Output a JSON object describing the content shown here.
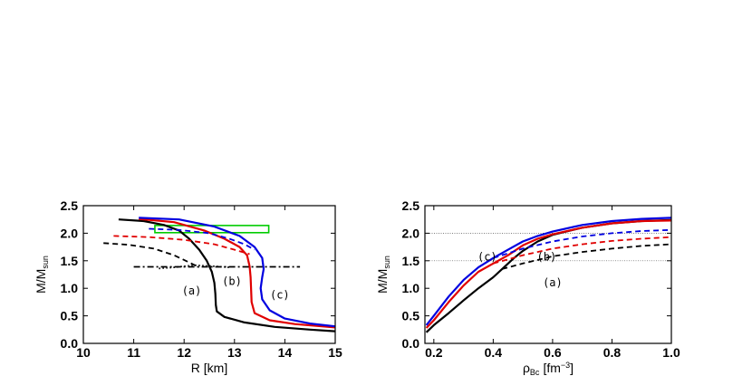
{
  "chart_data": [
    {
      "type": "line",
      "xlabel": "R [km]",
      "ylabel": "M/M",
      "ylabel_sub": "sun",
      "xlim": [
        10,
        15
      ],
      "ylim": [
        0.0,
        2.5
      ],
      "xticks": [
        10,
        11,
        12,
        13,
        14,
        15
      ],
      "yticks": [
        "0.0",
        "0.5",
        "1.0",
        "1.5",
        "2.0",
        "2.5"
      ],
      "annotations": [
        {
          "text": "(a)",
          "x": 12.15,
          "y": 0.95
        },
        {
          "text": "(b)",
          "x": 12.95,
          "y": 1.13
        },
        {
          "text": "(c)",
          "x": 13.9,
          "y": 0.88
        }
      ],
      "boxes": [
        {
          "x0": 11.42,
          "x1": 13.68,
          "y0": 2.01,
          "y1": 2.14,
          "color": "#00cc00"
        }
      ],
      "series": [
        {
          "color": "#000000",
          "style": "solid",
          "points": [
            [
              10.7,
              2.25
            ],
            [
              11.2,
              2.22
            ],
            [
              11.6,
              2.15
            ],
            [
              11.9,
              2.05
            ],
            [
              12.1,
              1.9
            ],
            [
              12.3,
              1.7
            ],
            [
              12.45,
              1.5
            ],
            [
              12.55,
              1.3
            ],
            [
              12.6,
              1.1
            ],
            [
              12.62,
              0.9
            ],
            [
              12.63,
              0.7
            ],
            [
              12.65,
              0.58
            ],
            [
              12.8,
              0.48
            ],
            [
              13.2,
              0.38
            ],
            [
              13.8,
              0.3
            ],
            [
              14.5,
              0.25
            ],
            [
              15.0,
              0.22
            ]
          ]
        },
        {
          "color": "#e00000",
          "style": "solid",
          "points": [
            [
              11.1,
              2.26
            ],
            [
              11.8,
              2.2
            ],
            [
              12.4,
              2.05
            ],
            [
              12.8,
              1.9
            ],
            [
              13.1,
              1.75
            ],
            [
              13.25,
              1.6
            ],
            [
              13.3,
              1.4
            ],
            [
              13.32,
              1.2
            ],
            [
              13.33,
              1.0
            ],
            [
              13.34,
              0.75
            ],
            [
              13.4,
              0.55
            ],
            [
              13.7,
              0.42
            ],
            [
              14.2,
              0.35
            ],
            [
              15.0,
              0.29
            ]
          ]
        },
        {
          "color": "#0000e0",
          "style": "solid",
          "points": [
            [
              11.1,
              2.28
            ],
            [
              11.9,
              2.25
            ],
            [
              12.6,
              2.12
            ],
            [
              13.1,
              1.95
            ],
            [
              13.4,
              1.75
            ],
            [
              13.55,
              1.55
            ],
            [
              13.58,
              1.35
            ],
            [
              13.55,
              1.2
            ],
            [
              13.52,
              1.0
            ],
            [
              13.55,
              0.8
            ],
            [
              13.7,
              0.6
            ],
            [
              14.0,
              0.45
            ],
            [
              14.5,
              0.36
            ],
            [
              15.0,
              0.31
            ]
          ]
        },
        {
          "color": "#000000",
          "style": "dash",
          "points": [
            [
              10.4,
              1.82
            ],
            [
              10.9,
              1.79
            ],
            [
              11.4,
              1.72
            ],
            [
              11.8,
              1.6
            ],
            [
              12.1,
              1.47
            ],
            [
              12.3,
              1.38
            ]
          ]
        },
        {
          "color": "#e00000",
          "style": "dash",
          "points": [
            [
              10.6,
              1.95
            ],
            [
              11.3,
              1.93
            ],
            [
              12.0,
              1.88
            ],
            [
              12.6,
              1.8
            ],
            [
              13.0,
              1.7
            ],
            [
              13.3,
              1.62
            ]
          ]
        },
        {
          "color": "#0000e0",
          "style": "dash",
          "points": [
            [
              11.3,
              2.08
            ],
            [
              11.9,
              2.06
            ],
            [
              12.5,
              2.0
            ],
            [
              12.9,
              1.9
            ],
            [
              13.2,
              1.8
            ],
            [
              13.4,
              1.7
            ]
          ]
        },
        {
          "color": "#000000",
          "style": "dashdot",
          "points": [
            [
              11.0,
              1.39
            ],
            [
              14.3,
              1.39
            ]
          ]
        },
        {
          "color": "#000000",
          "style": "dot",
          "points": [
            [
              11.5,
              1.36
            ],
            [
              11.8,
              1.38
            ],
            [
              12.2,
              1.42
            ],
            [
              12.6,
              1.4
            ],
            [
              12.9,
              1.38
            ]
          ]
        }
      ]
    },
    {
      "type": "line",
      "xlabel": "ρ",
      "xlabel_sub": "Bc",
      "xlabel_unit": "[fm",
      "xlabel_sup": "−3",
      "xlabel_end": "]",
      "ylabel": "M/M",
      "ylabel_sub": "sun",
      "xlim": [
        0.17,
        1.0
      ],
      "ylim": [
        0.0,
        2.5
      ],
      "xticks": [
        "0.2",
        "0.4",
        "0.6",
        "0.8",
        "1.0"
      ],
      "yticks": [
        "0.0",
        "0.5",
        "1.0",
        "1.5",
        "2.0",
        "2.5"
      ],
      "hlines": [
        2.0,
        1.5
      ],
      "annotations": [
        {
          "text": "(c)",
          "x": 0.38,
          "y": 1.57
        },
        {
          "text": "(b)",
          "x": 0.58,
          "y": 1.57
        },
        {
          "text": "(a)",
          "x": 0.6,
          "y": 1.1
        }
      ],
      "series": [
        {
          "color": "#000000",
          "style": "solid",
          "points": [
            [
              0.175,
              0.2
            ],
            [
              0.2,
              0.33
            ],
            [
              0.25,
              0.55
            ],
            [
              0.3,
              0.78
            ],
            [
              0.35,
              1.0
            ],
            [
              0.4,
              1.2
            ],
            [
              0.43,
              1.35
            ],
            [
              0.47,
              1.55
            ],
            [
              0.5,
              1.68
            ],
            [
              0.55,
              1.85
            ],
            [
              0.6,
              1.97
            ],
            [
              0.7,
              2.1
            ],
            [
              0.8,
              2.18
            ],
            [
              0.9,
              2.22
            ],
            [
              1.0,
              2.24
            ]
          ]
        },
        {
          "color": "#e00000",
          "style": "solid",
          "points": [
            [
              0.175,
              0.28
            ],
            [
              0.2,
              0.42
            ],
            [
              0.25,
              0.75
            ],
            [
              0.3,
              1.05
            ],
            [
              0.35,
              1.3
            ],
            [
              0.4,
              1.45
            ],
            [
              0.45,
              1.6
            ],
            [
              0.5,
              1.78
            ],
            [
              0.55,
              1.9
            ],
            [
              0.6,
              1.98
            ],
            [
              0.7,
              2.1
            ],
            [
              0.8,
              2.18
            ],
            [
              0.9,
              2.22
            ],
            [
              1.0,
              2.23
            ]
          ]
        },
        {
          "color": "#0000e0",
          "style": "solid",
          "points": [
            [
              0.175,
              0.33
            ],
            [
              0.2,
              0.5
            ],
            [
              0.25,
              0.85
            ],
            [
              0.3,
              1.15
            ],
            [
              0.35,
              1.38
            ],
            [
              0.4,
              1.55
            ],
            [
              0.45,
              1.7
            ],
            [
              0.5,
              1.85
            ],
            [
              0.55,
              1.95
            ],
            [
              0.6,
              2.03
            ],
            [
              0.7,
              2.15
            ],
            [
              0.8,
              2.22
            ],
            [
              0.9,
              2.26
            ],
            [
              1.0,
              2.28
            ]
          ]
        },
        {
          "color": "#000000",
          "style": "dash",
          "points": [
            [
              0.43,
              1.35
            ],
            [
              0.5,
              1.45
            ],
            [
              0.6,
              1.58
            ],
            [
              0.7,
              1.66
            ],
            [
              0.8,
              1.72
            ],
            [
              0.9,
              1.77
            ],
            [
              1.0,
              1.8
            ]
          ]
        },
        {
          "color": "#e00000",
          "style": "dash",
          "points": [
            [
              0.4,
              1.45
            ],
            [
              0.5,
              1.6
            ],
            [
              0.6,
              1.72
            ],
            [
              0.7,
              1.8
            ],
            [
              0.8,
              1.86
            ],
            [
              0.9,
              1.9
            ],
            [
              1.0,
              1.93
            ]
          ]
        },
        {
          "color": "#0000e0",
          "style": "dash",
          "points": [
            [
              0.4,
              1.55
            ],
            [
              0.5,
              1.72
            ],
            [
              0.6,
              1.85
            ],
            [
              0.7,
              1.94
            ],
            [
              0.8,
              2.0
            ],
            [
              0.9,
              2.04
            ],
            [
              1.0,
              2.06
            ]
          ]
        }
      ]
    }
  ]
}
